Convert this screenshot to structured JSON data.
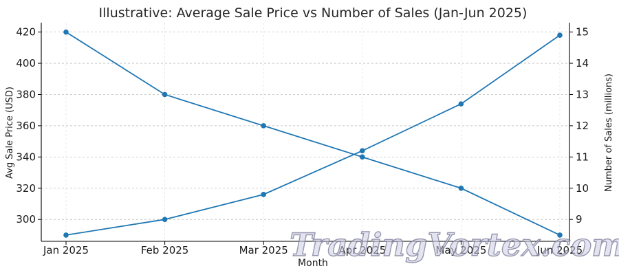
{
  "chart_data": {
    "type": "line",
    "title": "Illustrative: Average Sale Price vs Number of Sales (Jan-Jun 2025)",
    "xlabel": "Month",
    "categories": [
      "Jan 2025",
      "Feb 2025",
      "Mar 2025",
      "Apr 2025",
      "May 2025",
      "Jun 2025"
    ],
    "y_left": {
      "label": "Avg Sale Price (USD)",
      "ticks": [
        300,
        320,
        340,
        360,
        380,
        400,
        420
      ],
      "ylim": [
        286,
        426
      ]
    },
    "y_right": {
      "label": "Number of Sales (millions)",
      "ticks": [
        9,
        10,
        11,
        12,
        13,
        14,
        15
      ],
      "ylim": [
        8.3,
        15.3
      ]
    },
    "series": [
      {
        "axis": "left",
        "values": [
          420,
          380,
          360,
          340,
          320,
          290
        ]
      },
      {
        "axis": "right",
        "values": [
          8.5,
          9.0,
          9.8,
          11.2,
          12.7,
          14.9
        ]
      }
    ],
    "grid": true,
    "color": "#1f77b4"
  },
  "watermark": "TradingVortex.com"
}
